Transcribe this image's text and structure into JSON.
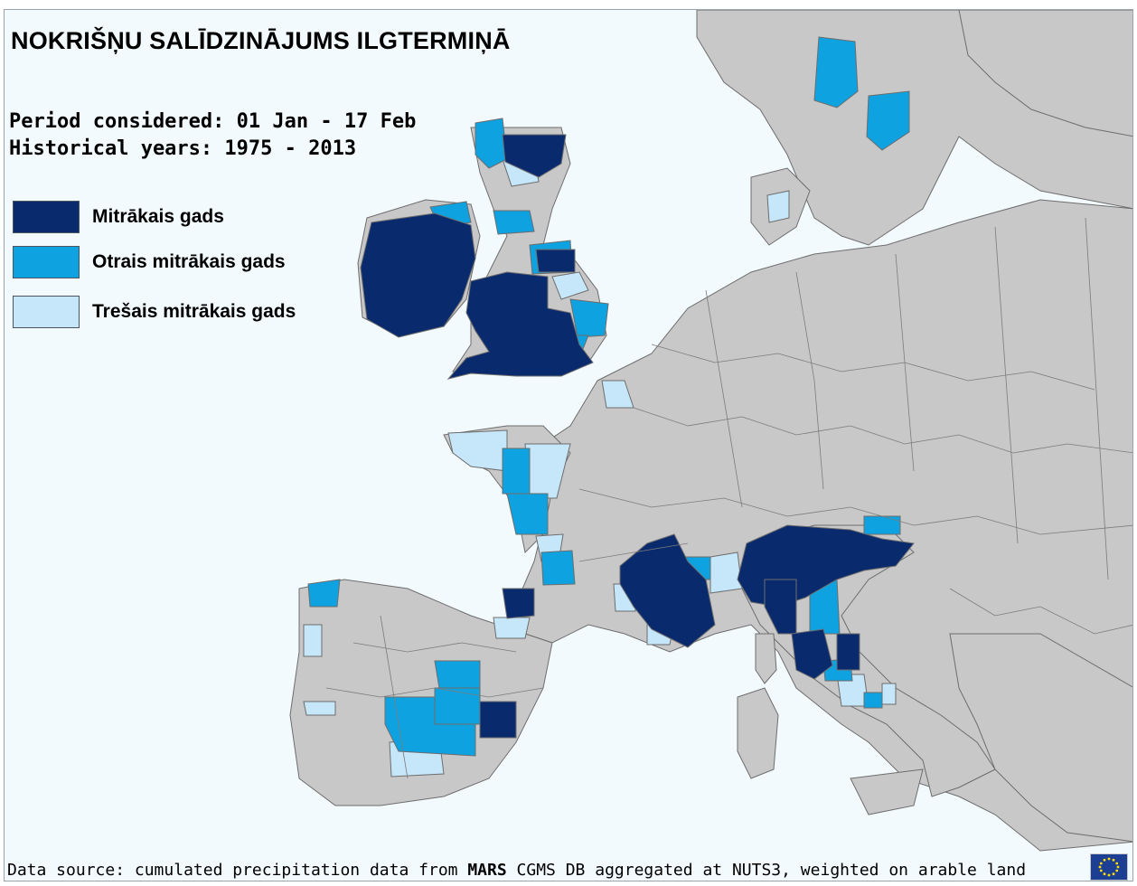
{
  "map": {
    "title": "NOKRIŠŅU SALĪDZINĀJUMS ILGTERMIŅĀ",
    "period_line": "Period considered: 01 Jan - 17 Feb",
    "historical_line": "Historical years: 1975 - 2013",
    "legend": [
      {
        "label": "Mitrākais gads",
        "color": "#0a2a6e"
      },
      {
        "label": "Otrais mitrākais gads",
        "color": "#0ea2e0"
      },
      {
        "label": "Trešais mitrākais gads",
        "color": "#c6e6fa"
      }
    ],
    "footer": {
      "prefix": "Data source: cumulated precipitation data from ",
      "bold": "MARS",
      "suffix": " CGMS DB aggregated at NUTS3, weighted on arable land"
    },
    "colors": {
      "sea": "#f3fafd",
      "land_no_data": "#c8c8c8",
      "border": "#7c7c7c",
      "wettest": "#0a2a6e",
      "second": "#0ea2e0",
      "third": "#c6e6fa"
    }
  }
}
